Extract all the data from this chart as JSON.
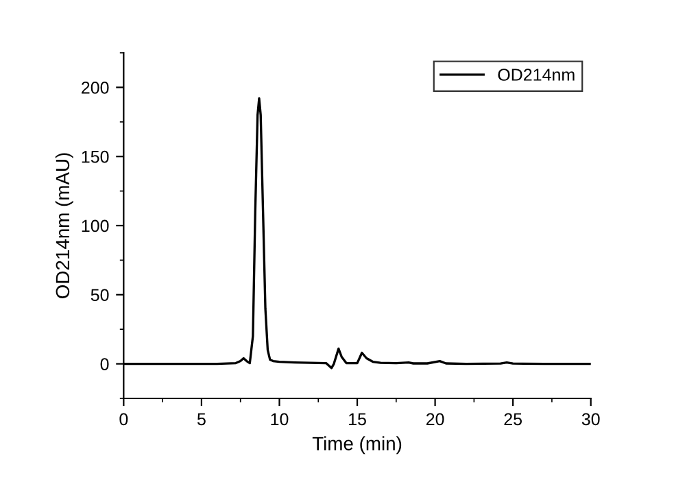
{
  "chart_data": {
    "type": "line",
    "xlabel": "Time (min)",
    "ylabel": "OD214nm (mAU)",
    "series": [
      {
        "name": "OD214nm",
        "color": "#000000",
        "x": [
          0,
          2,
          4,
          6,
          7.2,
          7.5,
          7.7,
          7.9,
          8.1,
          8.3,
          8.45,
          8.6,
          8.7,
          8.8,
          8.95,
          9.1,
          9.25,
          9.4,
          9.6,
          10,
          11,
          12,
          13,
          13.35,
          13.5,
          13.8,
          14.0,
          14.3,
          15.0,
          15.3,
          15.6,
          16.0,
          16.5,
          17.5,
          18.3,
          18.6,
          19.5,
          20.3,
          20.7,
          22,
          24.2,
          24.6,
          25,
          27,
          30
        ],
        "values": [
          0,
          0,
          0,
          0,
          0.5,
          2,
          4,
          2,
          0.5,
          20,
          110,
          180,
          192,
          180,
          110,
          40,
          10,
          3,
          2,
          1.5,
          1,
          0.7,
          0.5,
          -3,
          0,
          11,
          5,
          0.5,
          0.5,
          8,
          4,
          1.5,
          0.7,
          0.5,
          1,
          0.3,
          0.3,
          2,
          0.3,
          0,
          0.2,
          1,
          0.2,
          0,
          0
        ]
      }
    ],
    "xlim": [
      0,
      30
    ],
    "xticks": [
      0,
      5,
      10,
      15,
      20,
      25,
      30
    ],
    "ylim": [
      -25,
      225
    ],
    "yticks": [
      0,
      50,
      100,
      150,
      200
    ],
    "grid": false,
    "legend": "top right",
    "marker": "none",
    "line_style": "solid"
  }
}
